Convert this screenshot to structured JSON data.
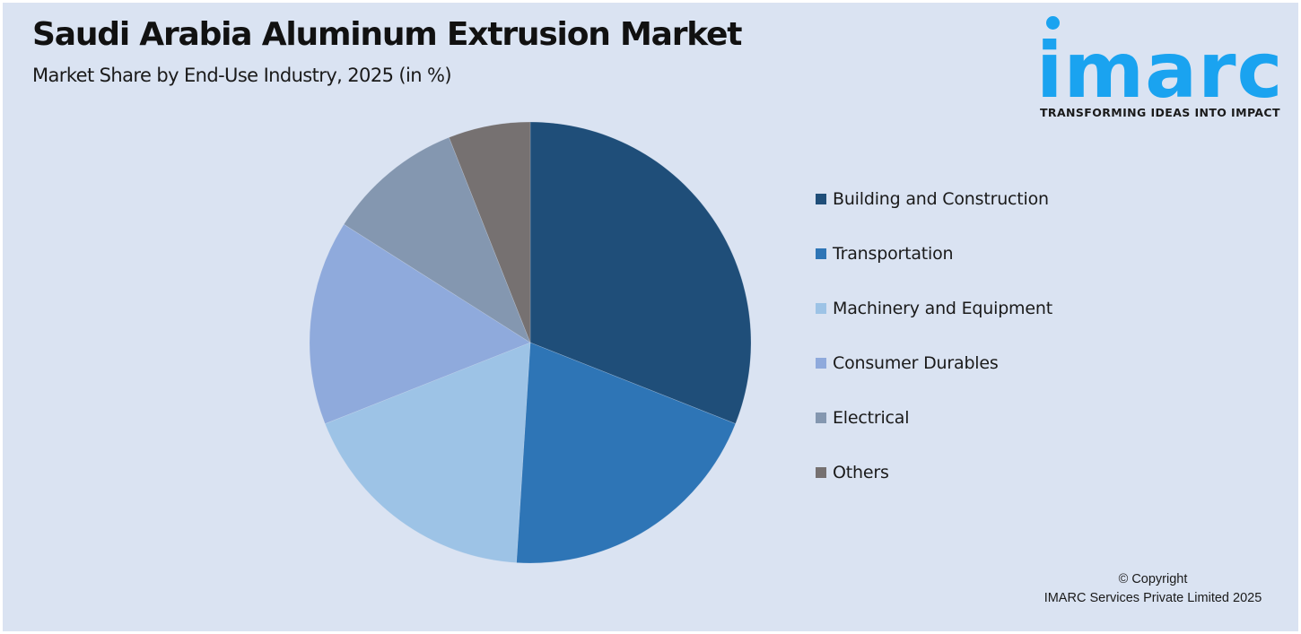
{
  "header": {
    "title": "Saudi Arabia Aluminum Extrusion Market",
    "subtitle": "Market Share by End-Use Industry, 2025 (in %)"
  },
  "logo": {
    "wordmark": "imarc",
    "tagline": "TRANSFORMING IDEAS INTO IMPACT",
    "color": "#1aa3f0"
  },
  "footer": {
    "line1": "© Copyright",
    "line2": "IMARC Services Private Limited 2025"
  },
  "chart_data": {
    "type": "pie",
    "title": "Saudi Arabia Aluminum Extrusion Market",
    "subtitle": "Market Share by End-Use Industry, 2025 (in %)",
    "categories": [
      "Building and Construction",
      "Transportation",
      "Machinery and Equipment",
      "Consumer Durables",
      "Electrical",
      "Others"
    ],
    "values": [
      31,
      20,
      18,
      15,
      10,
      6
    ],
    "colors": [
      "#1f4e79",
      "#2e75b6",
      "#9dc3e6",
      "#8faadc",
      "#8497b0",
      "#767171"
    ],
    "start_angle": "12 o'clock, clockwise",
    "legend_position": "right",
    "data_labels": false
  }
}
